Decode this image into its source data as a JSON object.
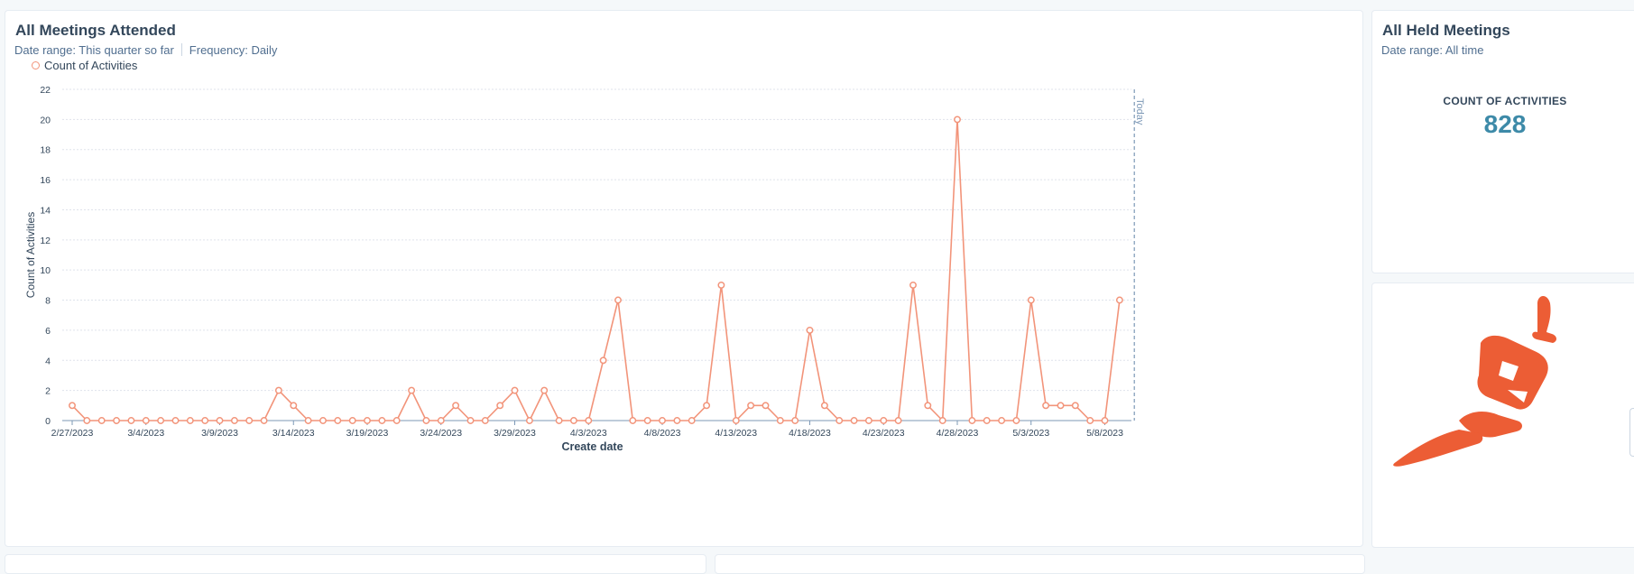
{
  "main_card": {
    "title": "All Meetings Attended",
    "date_range": "Date range: This quarter so far",
    "frequency": "Frequency: Daily",
    "legend_label": "Count of Activities"
  },
  "side_card": {
    "title": "All Held Meetings",
    "date_range": "Date range: All time",
    "kpi_label": "COUNT OF ACTIVITIES",
    "kpi_value": "828"
  },
  "logo": {
    "icon": "hubspot-sprocket-logo",
    "color": "#ec5d35"
  },
  "colors": {
    "series": "#f2947a",
    "kpi": "#3d8aa8",
    "today_line": "#7c98b6"
  },
  "chart_data": {
    "type": "line",
    "title": "All Meetings Attended",
    "xlabel": "Create date",
    "ylabel": "Count of Activities",
    "ylim": [
      0,
      22
    ],
    "yticks": [
      "0",
      "2",
      "4",
      "6",
      "8",
      "10",
      "12",
      "14",
      "16",
      "18",
      "20",
      "22"
    ],
    "xtick_labels": [
      "2/27/2023",
      "3/4/2023",
      "3/9/2023",
      "3/14/2023",
      "3/19/2023",
      "3/24/2023",
      "3/29/2023",
      "4/3/2023",
      "4/8/2023",
      "4/13/2023",
      "4/18/2023",
      "4/23/2023",
      "4/28/2023",
      "5/3/2023",
      "5/8/2023"
    ],
    "today_label": "Today",
    "today_date": "5/9/2023",
    "grid": true,
    "legend_position": "top-left",
    "series": [
      {
        "name": "Count of Activities",
        "start_date": "2/27/2023",
        "values": [
          1,
          0,
          0,
          0,
          0,
          0,
          0,
          0,
          0,
          0,
          0,
          0,
          0,
          0,
          2,
          1,
          0,
          0,
          0,
          0,
          0,
          0,
          0,
          2,
          0,
          0,
          1,
          0,
          0,
          1,
          2,
          0,
          2,
          0,
          0,
          0,
          4,
          8,
          0,
          0,
          0,
          0,
          0,
          1,
          9,
          0,
          1,
          1,
          0,
          0,
          6,
          1,
          0,
          0,
          0,
          0,
          0,
          9,
          1,
          0,
          20,
          0,
          0,
          0,
          0,
          8,
          1,
          1,
          1,
          0,
          0,
          8
        ]
      }
    ]
  }
}
